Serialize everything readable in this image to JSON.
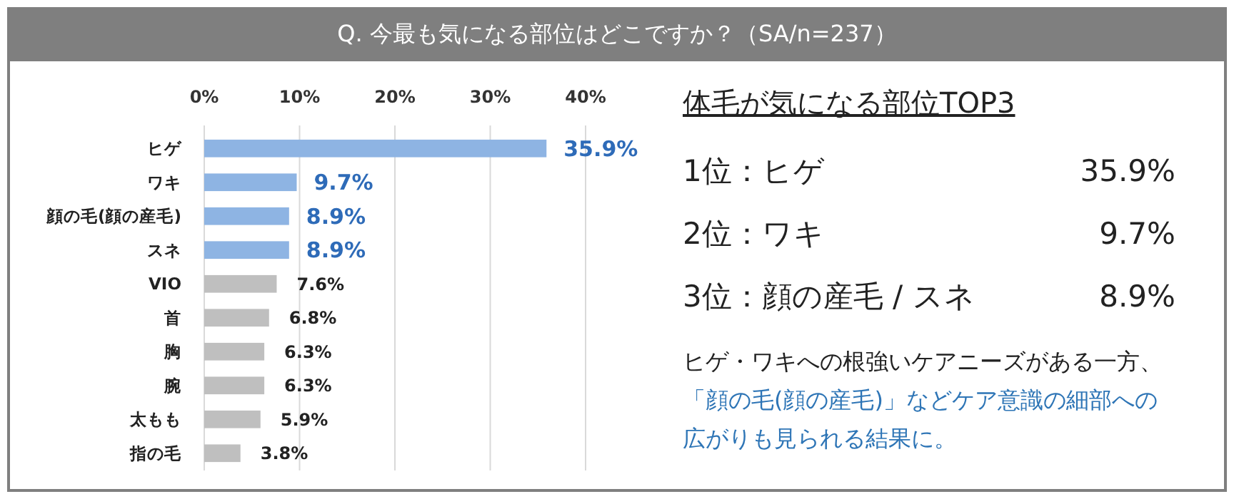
{
  "chart_data": [
    {
      "type": "bar",
      "orientation": "horizontal",
      "title": "Q. 今最も気になる部位はどこですか？（SA/n=237）",
      "categories": [
        "ヒゲ",
        "ワキ",
        "顔の毛(顔の産毛)",
        "スネ",
        "VIO",
        "首",
        "胸",
        "腕",
        "太もも",
        "指の毛"
      ],
      "values": [
        35.9,
        9.7,
        8.9,
        8.9,
        7.6,
        6.8,
        6.3,
        6.3,
        5.9,
        3.8
      ],
      "colors": [
        "#8eb4e3",
        "#8eb4e3",
        "#8eb4e3",
        "#8eb4e3",
        "#bfbfbf",
        "#bfbfbf",
        "#bfbfbf",
        "#bfbfbf",
        "#bfbfbf",
        "#bfbfbf"
      ],
      "value_labels": [
        "35.9%",
        "9.7%",
        "8.9%",
        "8.9%",
        "7.6%",
        "6.8%",
        "6.3%",
        "6.3%",
        "5.9%",
        "3.8%"
      ],
      "xlim": [
        0,
        40
      ],
      "xticks": [
        {
          "value": 0,
          "label": "0%"
        },
        {
          "value": 10,
          "label": "10%"
        },
        {
          "value": 20,
          "label": "20%"
        },
        {
          "value": 30,
          "label": "30%"
        },
        {
          "value": 40,
          "label": "40%"
        }
      ],
      "grid": "x"
    },
    {
      "type": "other",
      "title": "体毛が気になる部位TOP3",
      "annotations": [
        "1位：ヒゲ",
        "35.9%",
        "2位：ワキ",
        "9.7%",
        "3位：顔の産毛 / スネ",
        "8.9%",
        "ヒゲ・ワキへの根強いケアニーズがある一方、",
        "「顔の毛(顔の産毛)」などケア意識の細部への広がりも見られる結果に。"
      ]
    }
  ]
}
